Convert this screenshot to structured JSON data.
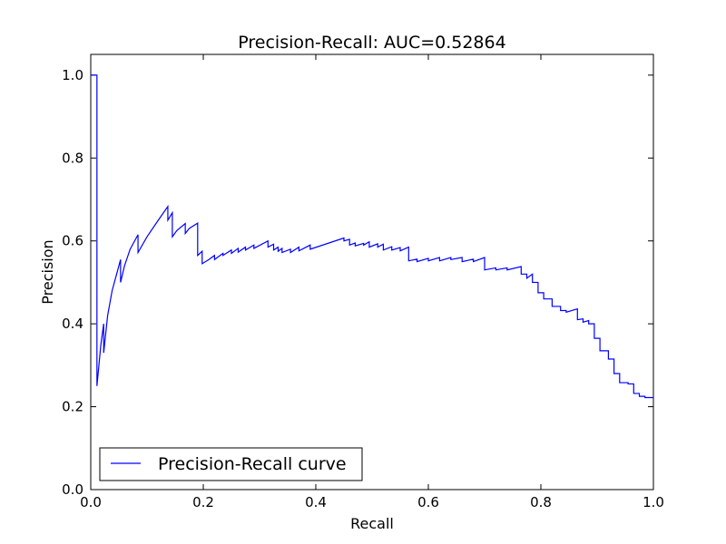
{
  "chart_data": {
    "type": "line",
    "title": "Precision-Recall: AUC=0.52864",
    "xlabel": "Recall",
    "ylabel": "Precision",
    "xlim": [
      0.0,
      1.0
    ],
    "ylim": [
      0.0,
      1.05
    ],
    "xticks": [
      "0.0",
      "0.2",
      "0.4",
      "0.6",
      "0.8",
      "1.0"
    ],
    "yticks": [
      "0.0",
      "0.2",
      "0.4",
      "0.6",
      "0.8",
      "1.0"
    ],
    "grid": false,
    "legend_position": "lower-left",
    "series": [
      {
        "name": "Precision-Recall curve",
        "color": "#0000ff",
        "x": [
          0.0,
          0.011,
          0.011,
          0.018,
          0.023,
          0.023,
          0.03,
          0.038,
          0.046,
          0.053,
          0.053,
          0.06,
          0.07,
          0.084,
          0.084,
          0.1,
          0.12,
          0.137,
          0.137,
          0.145,
          0.145,
          0.153,
          0.153,
          0.168,
          0.168,
          0.175,
          0.19,
          0.19,
          0.198,
          0.198,
          0.21,
          0.22,
          0.22,
          0.235,
          0.235,
          0.25,
          0.25,
          0.262,
          0.262,
          0.275,
          0.275,
          0.29,
          0.29,
          0.315,
          0.315,
          0.325,
          0.325,
          0.333,
          0.333,
          0.34,
          0.34,
          0.355,
          0.355,
          0.37,
          0.37,
          0.39,
          0.39,
          0.45,
          0.45,
          0.46,
          0.46,
          0.47,
          0.47,
          0.485,
          0.485,
          0.495,
          0.495,
          0.51,
          0.51,
          0.52,
          0.52,
          0.535,
          0.535,
          0.55,
          0.55,
          0.565,
          0.565,
          0.58,
          0.58,
          0.6,
          0.6,
          0.62,
          0.62,
          0.64,
          0.64,
          0.66,
          0.66,
          0.68,
          0.68,
          0.7,
          0.7,
          0.72,
          0.72,
          0.74,
          0.74,
          0.765,
          0.765,
          0.775,
          0.775,
          0.785,
          0.785,
          0.795,
          0.795,
          0.805,
          0.805,
          0.82,
          0.82,
          0.835,
          0.835,
          0.845,
          0.845,
          0.865,
          0.865,
          0.875,
          0.875,
          0.885,
          0.885,
          0.895,
          0.895,
          0.905,
          0.905,
          0.92,
          0.92,
          0.93,
          0.93,
          0.94,
          0.94,
          0.955,
          0.955,
          0.965,
          0.965,
          0.975,
          0.975,
          0.985,
          0.985,
          1.0
        ],
        "y": [
          1.0,
          1.0,
          0.25,
          0.35,
          0.4,
          0.33,
          0.42,
          0.48,
          0.52,
          0.555,
          0.5,
          0.54,
          0.58,
          0.615,
          0.572,
          0.61,
          0.65,
          0.683,
          0.65,
          0.668,
          0.61,
          0.625,
          0.625,
          0.642,
          0.618,
          0.63,
          0.643,
          0.565,
          0.575,
          0.545,
          0.555,
          0.565,
          0.555,
          0.57,
          0.565,
          0.578,
          0.57,
          0.582,
          0.573,
          0.585,
          0.578,
          0.59,
          0.582,
          0.6,
          0.585,
          0.592,
          0.578,
          0.585,
          0.575,
          0.582,
          0.572,
          0.58,
          0.572,
          0.585,
          0.576,
          0.59,
          0.58,
          0.607,
          0.6,
          0.604,
          0.59,
          0.595,
          0.588,
          0.594,
          0.59,
          0.598,
          0.585,
          0.593,
          0.585,
          0.592,
          0.578,
          0.586,
          0.578,
          0.584,
          0.576,
          0.585,
          0.552,
          0.556,
          0.55,
          0.558,
          0.552,
          0.56,
          0.552,
          0.56,
          0.555,
          0.56,
          0.55,
          0.556,
          0.55,
          0.56,
          0.53,
          0.535,
          0.53,
          0.535,
          0.53,
          0.538,
          0.52,
          0.52,
          0.51,
          0.52,
          0.5,
          0.5,
          0.475,
          0.475,
          0.46,
          0.46,
          0.442,
          0.442,
          0.432,
          0.432,
          0.428,
          0.436,
          0.41,
          0.412,
          0.404,
          0.408,
          0.4,
          0.4,
          0.365,
          0.365,
          0.335,
          0.335,
          0.315,
          0.315,
          0.28,
          0.28,
          0.258,
          0.258,
          0.255,
          0.255,
          0.232,
          0.232,
          0.225,
          0.225,
          0.222,
          0.222
        ]
      }
    ]
  }
}
